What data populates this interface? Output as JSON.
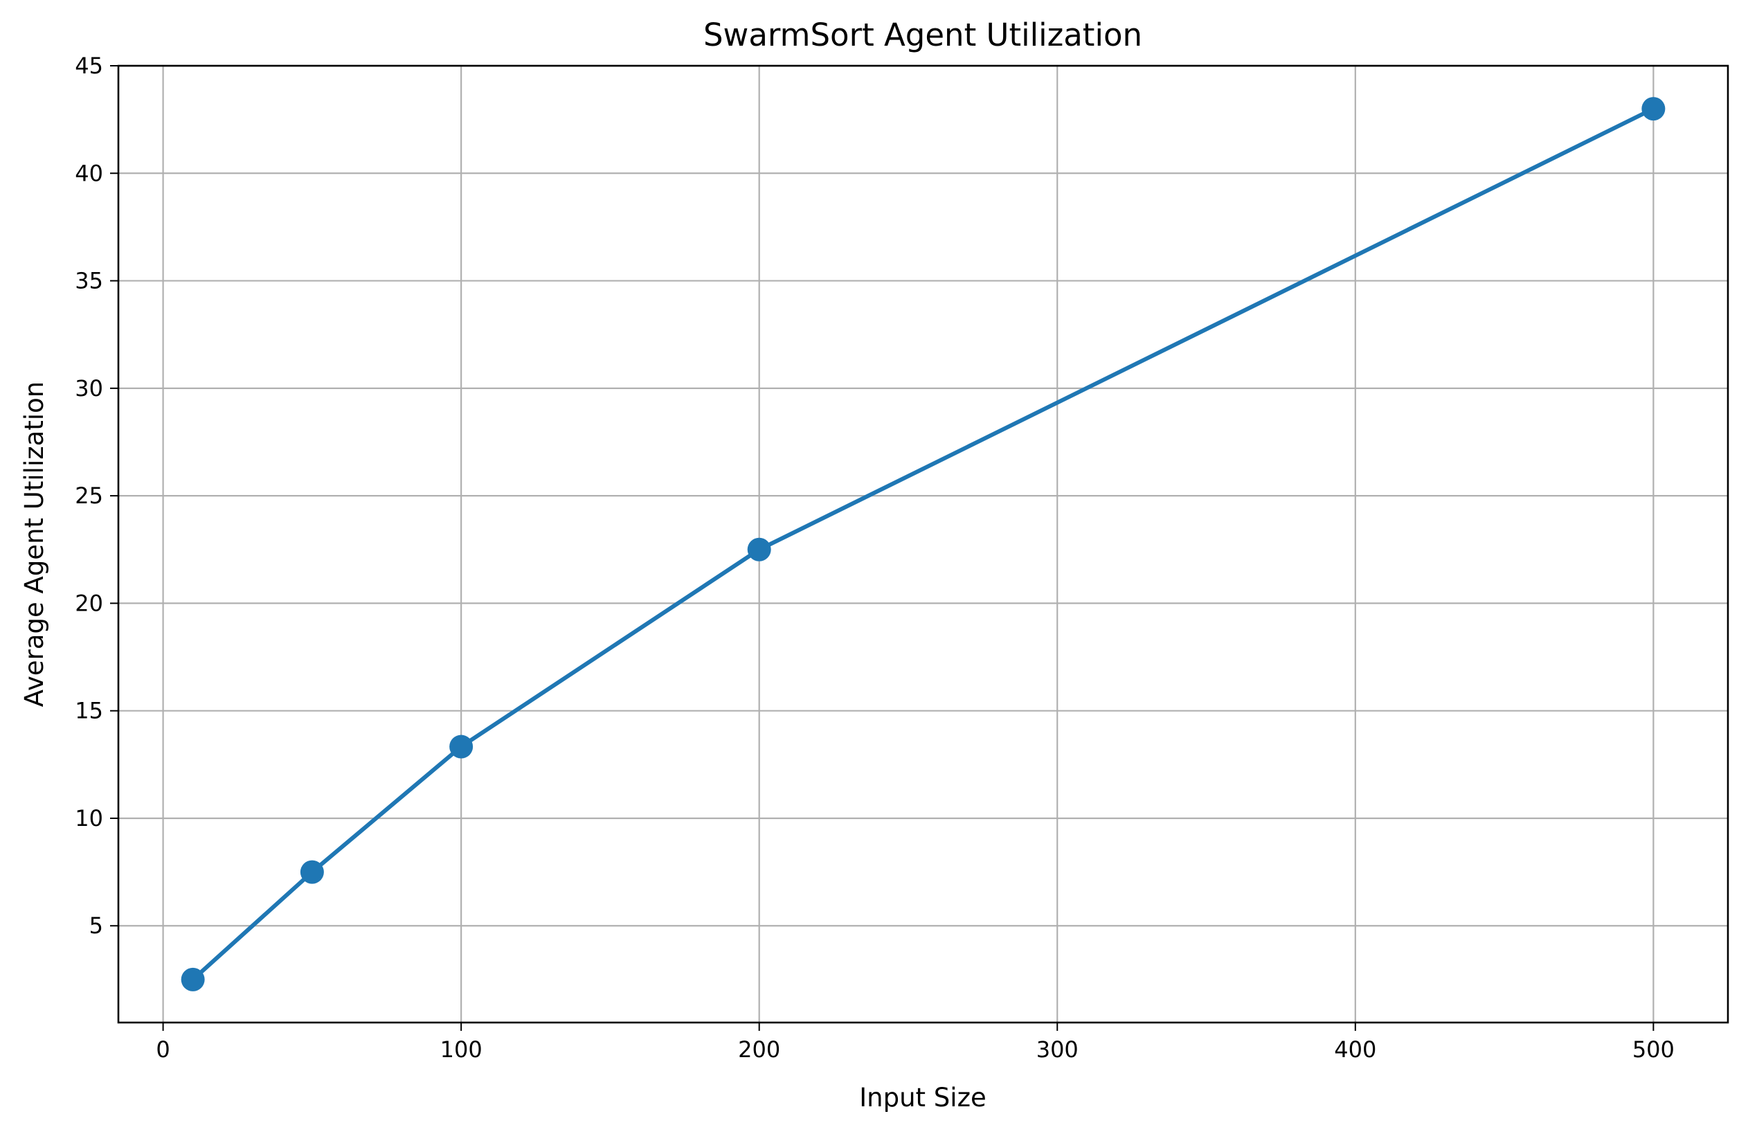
{
  "chart_data": {
    "type": "line",
    "title": "SwarmSort Agent Utilization",
    "xlabel": "Input Size",
    "ylabel": "Average Agent Utilization",
    "xlim": [
      -15,
      525
    ],
    "ylim": [
      0.5,
      45
    ],
    "xticks": [
      0,
      100,
      200,
      300,
      400,
      500
    ],
    "yticks": [
      5,
      10,
      15,
      20,
      25,
      30,
      35,
      40,
      45
    ],
    "grid": true,
    "series": [
      {
        "color": "#1f77b4",
        "marker": "circle",
        "x": [
          10,
          50,
          100,
          200,
          500
        ],
        "y": [
          2.5,
          7.5,
          13.33,
          22.5,
          43.0
        ]
      }
    ]
  }
}
